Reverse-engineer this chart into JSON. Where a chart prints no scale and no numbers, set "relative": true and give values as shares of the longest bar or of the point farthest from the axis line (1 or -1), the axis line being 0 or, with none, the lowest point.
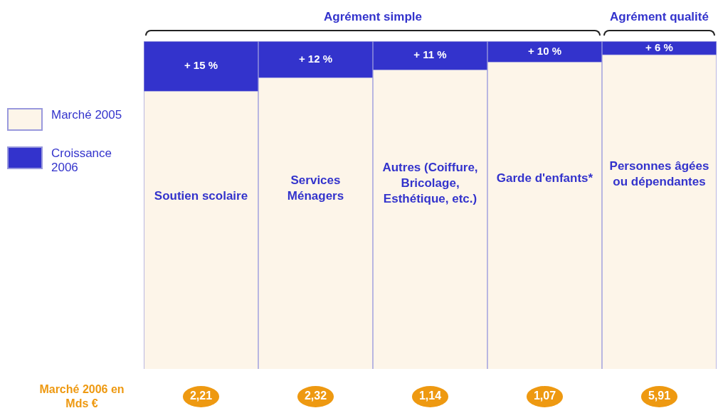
{
  "chart_data": {
    "type": "bar",
    "stacked": true,
    "relative": true,
    "legend": "left",
    "tick_labels": false,
    "categories": [
      "Soutien scolaire",
      "Services Ménagers",
      "Autres (Coiffure, Bricolage, Esthétique, etc.)",
      "Garde d'enfants*",
      "Personnes âgées ou dépendantes"
    ],
    "series": [
      {
        "name": "Marché 2005",
        "color": "#fdf5e9",
        "values": [
          0.848,
          0.889,
          0.913,
          0.937,
          0.959
        ]
      },
      {
        "name": "Croissance 2006",
        "color": "#3333cc",
        "values": [
          0.152,
          0.111,
          0.087,
          0.063,
          0.041
        ]
      }
    ],
    "annotations": [
      "Agrément simple",
      "Agrément qualité",
      "Marché 2006 en Mds €",
      "2,21",
      "2,32",
      "1,14",
      "1,07",
      "5,91",
      "+ 15 %",
      "+ 12 %",
      "+ 11 %",
      "+ 10 %",
      "+ 6 %"
    ]
  }
}
